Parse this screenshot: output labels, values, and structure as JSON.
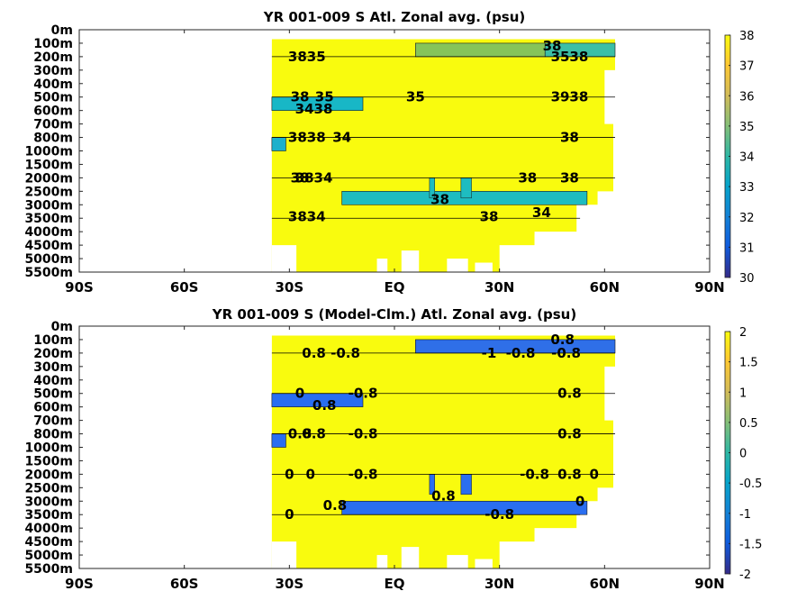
{
  "chart_data": [
    {
      "type": "heatmap",
      "title": "YR 001-009 S Atl. Zonal avg. (psu)",
      "x_ticks": [
        "90S",
        "60S",
        "30S",
        "EQ",
        "30N",
        "60N",
        "90N"
      ],
      "x_tick_values": [
        -90,
        -60,
        -30,
        0,
        30,
        60,
        90
      ],
      "y_ticks": [
        "0m",
        "100m",
        "200m",
        "300m",
        "400m",
        "500m",
        "600m",
        "700m",
        "800m",
        "1000m",
        "1500m",
        "2000m",
        "2500m",
        "3000m",
        "3500m",
        "4000m",
        "4500m",
        "5000m",
        "5500m"
      ],
      "xlim": [
        -90,
        90
      ],
      "colorbar": {
        "min": 30,
        "max": 38,
        "ticks": [
          "30",
          "31",
          "32",
          "33",
          "34",
          "35",
          "36",
          "37",
          "38"
        ]
      },
      "data_extent_x": [
        -35,
        63
      ],
      "background_value": 38,
      "regions": [
        {
          "x": [
            -35,
            -9
          ],
          "levels": [
            5,
            6
          ],
          "value": 33.8,
          "color": "#18b7c6"
        },
        {
          "x": [
            -35,
            -31
          ],
          "levels": [
            8,
            9
          ],
          "value": 33.5,
          "color": "#1cb0cc"
        },
        {
          "x": [
            6,
            43
          ],
          "levels": [
            1,
            2
          ],
          "value": 35.6,
          "color": "#86c45a"
        },
        {
          "x": [
            43,
            63
          ],
          "levels": [
            1,
            2
          ],
          "value": 34.5,
          "color": "#3cbfa6"
        },
        {
          "x": [
            -15,
            55
          ],
          "levels": [
            12,
            13
          ],
          "value": 34.2,
          "color": "#1ebcc0"
        }
      ],
      "contour_labels": [
        {
          "text": "38",
          "x": 45,
          "y": 1.2
        },
        {
          "text": "3835",
          "x": -25,
          "y": 2.0
        },
        {
          "text": "3538",
          "x": 50,
          "y": 2.0
        },
        {
          "text": "38",
          "x": -27,
          "y": 5.0
        },
        {
          "text": "35",
          "x": -20,
          "y": 5.0
        },
        {
          "text": "35",
          "x": 6,
          "y": 5.0
        },
        {
          "text": "3938",
          "x": 50,
          "y": 5.0
        },
        {
          "text": "3438",
          "x": -23,
          "y": 5.9
        },
        {
          "text": "3838",
          "x": -25,
          "y": 8.0
        },
        {
          "text": "34",
          "x": -15,
          "y": 8.0
        },
        {
          "text": "38",
          "x": 50,
          "y": 8.0
        },
        {
          "text": "38",
          "x": -27,
          "y": 11.0
        },
        {
          "text": "3834",
          "x": -23,
          "y": 11.0
        },
        {
          "text": "38",
          "x": 38,
          "y": 11.0
        },
        {
          "text": "38",
          "x": 50,
          "y": 11.0
        },
        {
          "text": "38",
          "x": 13,
          "y": 12.6
        },
        {
          "text": "38",
          "x": 27,
          "y": 13.9
        },
        {
          "text": "34",
          "x": 42,
          "y": 13.6
        },
        {
          "text": "3834",
          "x": -25,
          "y": 13.9
        }
      ]
    },
    {
      "type": "heatmap",
      "title": "YR 001-009 S (Model-Clm.) Atl. Zonal avg. (psu)",
      "x_ticks": [
        "90S",
        "60S",
        "30S",
        "EQ",
        "30N",
        "60N",
        "90N"
      ],
      "x_tick_values": [
        -90,
        -60,
        -30,
        0,
        30,
        60,
        90
      ],
      "y_ticks": [
        "0m",
        "100m",
        "200m",
        "300m",
        "400m",
        "500m",
        "600m",
        "700m",
        "800m",
        "1000m",
        "1500m",
        "2000m",
        "2500m",
        "3000m",
        "3500m",
        "4000m",
        "4500m",
        "5000m",
        "5500m"
      ],
      "xlim": [
        -90,
        90
      ],
      "colorbar": {
        "min": -2,
        "max": 2,
        "ticks": [
          "-2",
          "-1.5",
          "-1",
          "-0.5",
          "0",
          "0.5",
          "1",
          "1.5",
          "2"
        ]
      },
      "data_extent_x": [
        -35,
        63
      ],
      "background_value": 2,
      "regions": [
        {
          "x": [
            6,
            63
          ],
          "levels": [
            1,
            2
          ],
          "value": -0.9,
          "color": "#2f6fe8"
        },
        {
          "x": [
            -35,
            -9
          ],
          "levels": [
            5,
            6
          ],
          "value": -0.8,
          "color": "#2a6ef0"
        },
        {
          "x": [
            -35,
            -31
          ],
          "levels": [
            8,
            9
          ],
          "value": -0.8,
          "color": "#2a6ef0"
        },
        {
          "x": [
            -15,
            55
          ],
          "levels": [
            13,
            14
          ],
          "value": -0.9,
          "color": "#2a6ef0"
        }
      ],
      "contour_labels": [
        {
          "text": "0.8",
          "x": 48,
          "y": 1.0
        },
        {
          "text": "0.8",
          "x": -23,
          "y": 2.0
        },
        {
          "text": "-0.8",
          "x": -14,
          "y": 2.0
        },
        {
          "text": "-1",
          "x": 27,
          "y": 2.0
        },
        {
          "text": "-0.8",
          "x": 36,
          "y": 2.0
        },
        {
          "text": "-0.8",
          "x": 49,
          "y": 2.0
        },
        {
          "text": "0",
          "x": -27,
          "y": 5.0
        },
        {
          "text": "-0.8",
          "x": -9,
          "y": 5.0
        },
        {
          "text": "0.8",
          "x": 50,
          "y": 5.0
        },
        {
          "text": "0.8",
          "x": -20,
          "y": 5.9
        },
        {
          "text": "0.8",
          "x": -27,
          "y": 8.0
        },
        {
          "text": "0.8",
          "x": -23,
          "y": 8.0
        },
        {
          "text": "-0.8",
          "x": -9,
          "y": 8.0
        },
        {
          "text": "0.8",
          "x": 50,
          "y": 8.0
        },
        {
          "text": "0",
          "x": -30,
          "y": 11.0
        },
        {
          "text": "0",
          "x": -24,
          "y": 11.0
        },
        {
          "text": "-0.8",
          "x": -9,
          "y": 11.0
        },
        {
          "text": "-0.8",
          "x": 40,
          "y": 11.0
        },
        {
          "text": "0.8",
          "x": 50,
          "y": 11.0
        },
        {
          "text": "0",
          "x": 57,
          "y": 11.0
        },
        {
          "text": "0.8",
          "x": 14,
          "y": 12.6
        },
        {
          "text": "0.8",
          "x": -17,
          "y": 13.3
        },
        {
          "text": "0",
          "x": 53,
          "y": 13.0
        },
        {
          "text": "0",
          "x": -30,
          "y": 14.0
        },
        {
          "text": "-0.8",
          "x": 30,
          "y": 14.0
        }
      ]
    }
  ]
}
